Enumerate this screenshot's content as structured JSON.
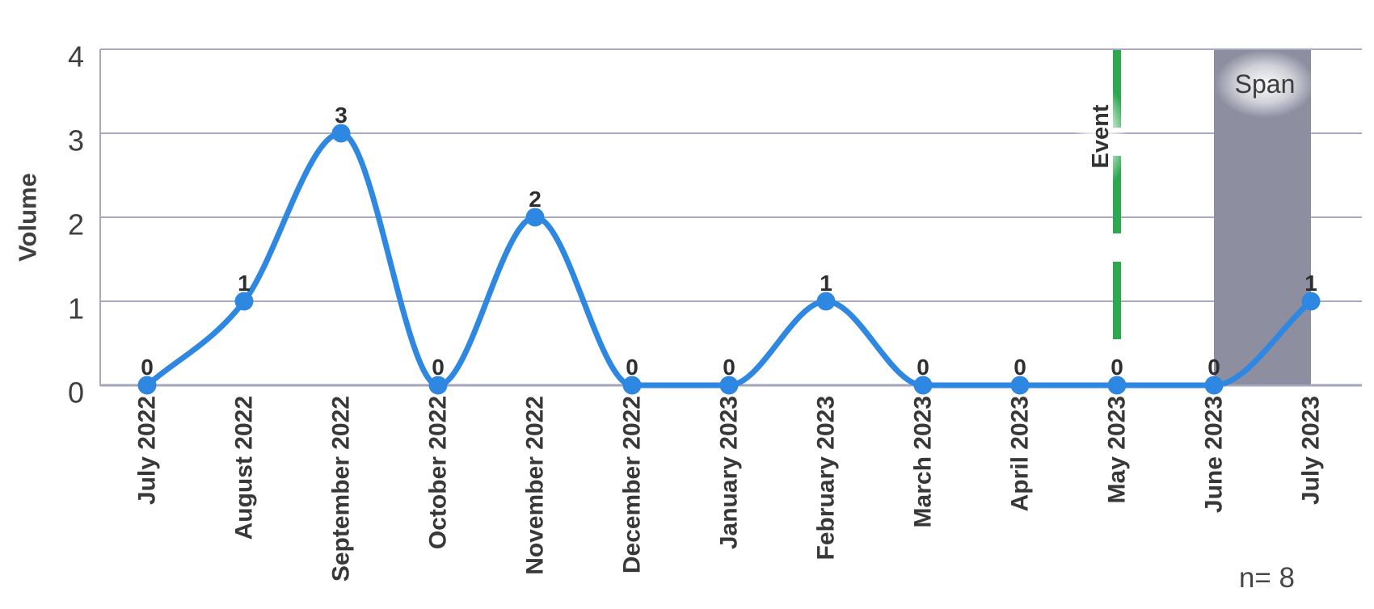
{
  "chart_data": {
    "type": "line",
    "title": "",
    "ylabel": "Volume",
    "xlabel": "",
    "footnote": "n= 8",
    "categories": [
      "July 2022",
      "August 2022",
      "September 2022",
      "October 2022",
      "November 2022",
      "December 2022",
      "January 2023",
      "February 2023",
      "March 2023",
      "April 2023",
      "May 2023",
      "June 2023",
      "July 2023"
    ],
    "series": [
      {
        "name": "Volume",
        "values": [
          0,
          1,
          3,
          0,
          2,
          0,
          0,
          1,
          0,
          0,
          0,
          0,
          1
        ]
      }
    ],
    "ylim": [
      0,
      4
    ],
    "yticks": [
      0,
      1,
      2,
      3,
      4
    ],
    "grid": true,
    "legend_position": "none",
    "curve_style": "smooth-monotone",
    "data_labels_shown": true,
    "event": {
      "label": "Event",
      "category": "May 2023",
      "style": "dashed-vertical-line"
    },
    "span": {
      "label": "Span",
      "from_category": "June 2023",
      "to_category": "July 2023",
      "style": "shaded-region"
    }
  },
  "colors": {
    "series_line": "#2e87e0",
    "marker_fill": "#2e87e0",
    "event_line": "#2ca84f",
    "span_fill": "#8d8fa1",
    "gridline": "#a7a8c2",
    "axis_line": "#a3a4bd",
    "tick_text": "#3f3f3f",
    "label_text": "#383838",
    "data_label_text": "#2e2e2e",
    "footnote_text": "#474747",
    "background": "#ffffff"
  }
}
